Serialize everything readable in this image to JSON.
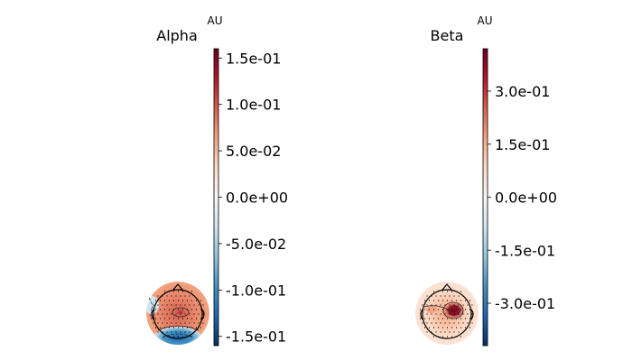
{
  "chart_data": [
    {
      "type": "heatmap",
      "title": "Alpha",
      "colorbar": {
        "unit": "AU",
        "range": [
          -0.16,
          0.16
        ],
        "ticks": [
          {
            "value": 0.15,
            "label": "1.5e-01"
          },
          {
            "value": 0.1,
            "label": "1.0e-01"
          },
          {
            "value": 0.05,
            "label": "5.0e-02"
          },
          {
            "value": 0.0,
            "label": "0.0e+00"
          },
          {
            "value": -0.05,
            "label": "-5.0e-02"
          },
          {
            "value": -0.1,
            "label": "-1.0e-01"
          },
          {
            "value": -0.15,
            "label": "-1.5e-01"
          }
        ],
        "colormap": "RdBu_r"
      }
    },
    {
      "type": "heatmap",
      "title": "Beta",
      "colorbar": {
        "unit": "AU",
        "range": [
          -0.42,
          0.42
        ],
        "ticks": [
          {
            "value": 0.3,
            "label": "3.0e-01"
          },
          {
            "value": 0.15,
            "label": "1.5e-01"
          },
          {
            "value": 0.0,
            "label": "0.0e+00"
          },
          {
            "value": -0.15,
            "label": "-1.5e-01"
          },
          {
            "value": -0.3,
            "label": "-3.0e-01"
          }
        ],
        "colormap": "RdBu_r"
      }
    }
  ]
}
